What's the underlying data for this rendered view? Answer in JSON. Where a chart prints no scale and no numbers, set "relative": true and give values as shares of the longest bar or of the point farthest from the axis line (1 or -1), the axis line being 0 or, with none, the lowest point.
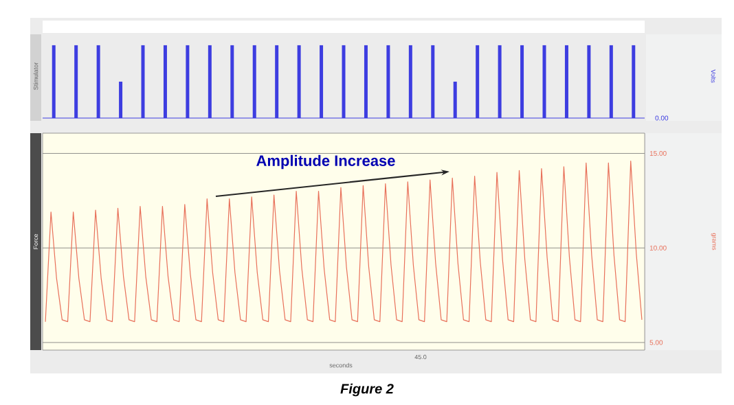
{
  "chart_data": [
    {
      "type": "bar",
      "relative": true,
      "ylabel": "Stimulator",
      "y2label": "Volts",
      "color": "#3d3de0",
      "categories": [
        null,
        null,
        null,
        null,
        null,
        null,
        null,
        null,
        null,
        null,
        null,
        null,
        null,
        null,
        null,
        null,
        null,
        null,
        null,
        null,
        null,
        null,
        null,
        null,
        null,
        null,
        null
      ],
      "values": [
        1,
        1,
        1,
        0.5,
        1,
        1,
        1,
        1,
        1,
        1,
        1,
        1,
        1,
        1,
        1,
        1,
        1,
        1,
        0.5,
        1,
        1,
        1,
        1,
        1,
        1,
        1,
        1
      ],
      "annotations": [
        "0.00"
      ]
    },
    {
      "type": "line",
      "ylabel": "Force",
      "y2label": "grams",
      "xlabel": "seconds",
      "color": "#e8705a",
      "categories": [
        null,
        null,
        null,
        null,
        null,
        null,
        null,
        null,
        null,
        null,
        null,
        null,
        null,
        null,
        null,
        null,
        null,
        null,
        null,
        null,
        null,
        null,
        null,
        null,
        null,
        null,
        null,
        null,
        null,
        null,
        null,
        null,
        null,
        null,
        null,
        null,
        null,
        null,
        null,
        null,
        null,
        null,
        null,
        null,
        null,
        null,
        null,
        null,
        null,
        null,
        null,
        null,
        null,
        null,
        null,
        null,
        null,
        null,
        null,
        null,
        null,
        null,
        null,
        null,
        null,
        null,
        null,
        null,
        null,
        null,
        null,
        null,
        null,
        null,
        null,
        null,
        null,
        null,
        null,
        null,
        null,
        null,
        null,
        null,
        null,
        null,
        null,
        null,
        null,
        null,
        null,
        null,
        null,
        null,
        null,
        null,
        null,
        null,
        null,
        null,
        null,
        null,
        null,
        null,
        null,
        null,
        null,
        null
      ],
      "values": [
        6.1,
        11.9,
        8.4,
        6.2,
        6.1,
        11.9,
        8.4,
        6.2,
        6.1,
        12.0,
        8.4,
        6.2,
        6.1,
        12.1,
        8.5,
        6.2,
        6.1,
        12.2,
        8.5,
        6.2,
        6.1,
        12.2,
        8.5,
        6.2,
        6.1,
        12.3,
        8.6,
        6.2,
        6.1,
        12.6,
        8.7,
        6.2,
        6.1,
        12.6,
        8.7,
        6.2,
        6.1,
        12.7,
        8.7,
        6.2,
        6.1,
        12.8,
        8.8,
        6.2,
        6.1,
        13.0,
        8.9,
        6.2,
        6.1,
        13.0,
        8.9,
        6.2,
        6.1,
        13.2,
        9.0,
        6.2,
        6.1,
        13.3,
        9.0,
        6.2,
        6.1,
        13.4,
        9.1,
        6.2,
        6.1,
        13.5,
        9.1,
        6.2,
        6.1,
        13.6,
        9.2,
        6.2,
        6.1,
        13.7,
        9.2,
        6.2,
        6.1,
        13.8,
        9.3,
        6.2,
        6.1,
        14.0,
        9.4,
        6.2,
        6.1,
        14.1,
        9.4,
        6.2,
        6.1,
        14.2,
        9.5,
        6.2,
        6.1,
        14.3,
        9.5,
        6.2,
        6.1,
        14.5,
        9.6,
        6.2,
        6.1,
        14.5,
        9.6,
        6.2,
        6.1,
        14.6,
        9.7,
        6.2
      ],
      "ylim": [
        4.6,
        16.07
      ],
      "yticks": [
        {
          "value": 5,
          "label": "5.00"
        },
        {
          "value": 10,
          "label": "10.00"
        },
        {
          "value": 15,
          "label": "15.00"
        }
      ],
      "grid": "y",
      "annotations": [
        "Amplitude Increase",
        "45.0",
        "Figure 2"
      ]
    }
  ]
}
